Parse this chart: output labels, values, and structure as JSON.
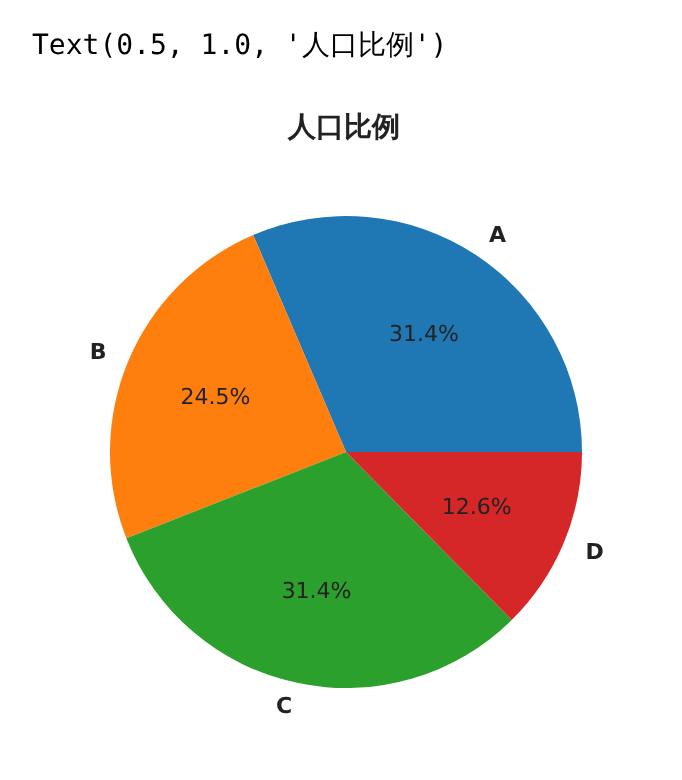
{
  "chart_data": {
    "type": "pie",
    "title": "人口比例",
    "annotations": [
      "Text(0.5, 1.0, '人口比例')"
    ],
    "categories": [
      "A",
      "B",
      "C",
      "D"
    ],
    "values": [
      31.4,
      24.5,
      31.4,
      12.6
    ],
    "colors": [
      "#1f77b4",
      "#ff7f0e",
      "#2ca02c",
      "#d62728"
    ],
    "value_labels": [
      "31.4%",
      "24.5%",
      "31.4%",
      "12.6%"
    ]
  }
}
